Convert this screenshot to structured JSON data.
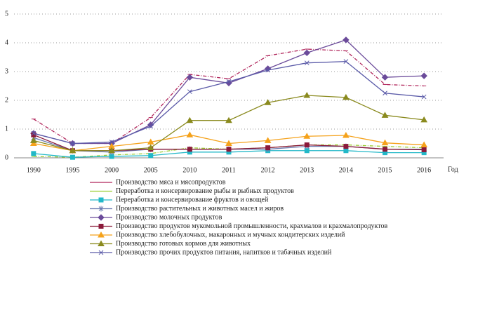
{
  "chart_data": {
    "type": "line",
    "x_label": "Год",
    "categories": [
      "1990",
      "1995",
      "2000",
      "2005",
      "2010",
      "2011",
      "2012",
      "2013",
      "2014",
      "2015",
      "2016"
    ],
    "ylim": [
      0,
      5
    ],
    "yticks": [
      0,
      1,
      2,
      3,
      4,
      5
    ],
    "grid": true,
    "series": [
      {
        "name": "Производство мяса и мясопродуктов",
        "color": "#b0245a",
        "marker": "dash",
        "values": [
          1.35,
          0.5,
          0.5,
          1.4,
          2.9,
          2.75,
          3.55,
          3.78,
          3.72,
          2.55,
          2.5
        ]
      },
      {
        "name": "Переработка и консервирование рыбы и рыбных продуктов",
        "color": "#9acd32",
        "marker": "dash",
        "values": [
          0.05,
          0.02,
          0.1,
          0.15,
          0.35,
          0.3,
          0.35,
          0.45,
          0.45,
          0.4,
          0.35
        ]
      },
      {
        "name": "Переработка и консервирование фруктов и овощей",
        "color": "#22b8c8",
        "marker": "square",
        "values": [
          0.15,
          0.02,
          0.05,
          0.08,
          0.2,
          0.2,
          0.25,
          0.25,
          0.25,
          0.18,
          0.18
        ]
      },
      {
        "name": "Производство растительных и животных масел и жиров",
        "color": "#6a7bb0",
        "marker": "star",
        "values": [
          0.7,
          0.25,
          0.2,
          0.3,
          0.3,
          0.3,
          0.3,
          0.4,
          0.4,
          0.3,
          0.3
        ]
      },
      {
        "name": "Производство молочных продуктов",
        "color": "#6b4b9a",
        "marker": "diamond",
        "values": [
          0.85,
          0.5,
          0.5,
          1.15,
          2.8,
          2.6,
          3.1,
          3.65,
          4.1,
          2.8,
          2.85
        ]
      },
      {
        "name": "Производство продуктов мукомольной промышленности, крахмалов и крахмалопродуктов",
        "color": "#8b1a3a",
        "marker": "square",
        "values": [
          0.8,
          0.25,
          0.25,
          0.3,
          0.3,
          0.3,
          0.35,
          0.45,
          0.4,
          0.3,
          0.28
        ]
      },
      {
        "name": "Производство хлебобулочных, макаронных и мучных кондитерских изделий",
        "color": "#f5a21b",
        "marker": "triangle",
        "values": [
          0.5,
          0.25,
          0.4,
          0.55,
          0.8,
          0.5,
          0.6,
          0.75,
          0.78,
          0.52,
          0.45
        ]
      },
      {
        "name": "Производство готовых кормов для животных",
        "color": "#8a8a1e",
        "marker": "triangle",
        "values": [
          0.6,
          0.25,
          0.25,
          0.35,
          1.3,
          1.3,
          1.92,
          2.17,
          2.1,
          1.48,
          1.32
        ]
      },
      {
        "name": "Производство прочих продуктов питания, напитков и табачных изделий",
        "color": "#5a5aa8",
        "marker": "x",
        "values": [
          0.85,
          0.5,
          0.55,
          1.1,
          2.3,
          2.65,
          3.05,
          3.3,
          3.35,
          2.25,
          2.12
        ]
      }
    ]
  }
}
